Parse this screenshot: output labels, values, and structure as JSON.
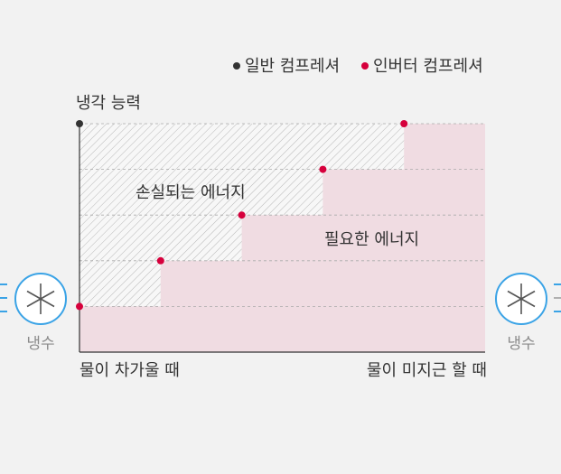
{
  "legend": {
    "general": {
      "label": "일반 컴프레셔",
      "color": "#333333"
    },
    "inverter": {
      "label": "인버터 컴프레셔",
      "color": "#d6003c"
    }
  },
  "axes": {
    "ylabel": "냉각 능력",
    "x_start_label": "물이 차가울 때",
    "x_end_label": "물이 미지근 할 때"
  },
  "regions": {
    "lost_energy": "손실되는 에너지",
    "needed_energy": "필요한 에너지"
  },
  "side": {
    "left_label": "냉수",
    "right_label": "냉수",
    "icon": "snowflake-icon"
  },
  "colors": {
    "needed_fill": "#f0dce2",
    "hatch": "#b8b8b8",
    "point": "#d6003c",
    "ring": "#3aa3e6"
  },
  "chart_data": {
    "type": "area",
    "title": "",
    "xlabel": "",
    "ylabel": "냉각 능력",
    "general_level": 5,
    "inverter_steps": [
      {
        "x": 0,
        "y": 1
      },
      {
        "x": 1,
        "y": 2
      },
      {
        "x": 2,
        "y": 3
      },
      {
        "x": 3,
        "y": 4
      },
      {
        "x": 4,
        "y": 5
      }
    ],
    "xlim": [
      0,
      5
    ],
    "ylim": [
      0,
      5
    ],
    "grid": true
  }
}
